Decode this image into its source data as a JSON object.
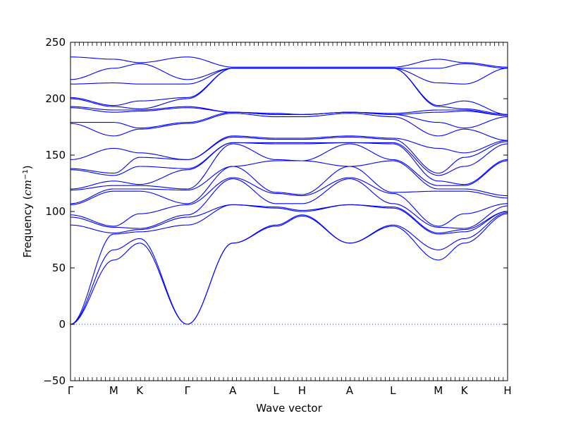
{
  "chart_data": {
    "type": "line",
    "title": "",
    "xlabel": "Wave vector",
    "ylabel": {
      "prefix": "Frequency (",
      "unit": "cm",
      "exponent": "−1",
      "suffix": ")"
    },
    "ylim": [
      -50,
      250
    ],
    "yticks": [
      "250",
      "200",
      "150",
      "100",
      "50",
      "0",
      "−50"
    ],
    "ytick_values": [
      250,
      200,
      150,
      100,
      50,
      0,
      -50
    ],
    "xticks": [
      {
        "label": "Γ",
        "x": 0
      },
      {
        "label": "M",
        "x": 1
      },
      {
        "label": "K",
        "x": 1.6
      },
      {
        "label": "Γ",
        "x": 2.7
      },
      {
        "label": "A",
        "x": 3.75
      },
      {
        "label": "L",
        "x": 4.75
      },
      {
        "label": "H",
        "x": 5.35
      },
      {
        "label": "A",
        "x": 6.45
      },
      {
        "label": "L",
        "x": 7.45
      },
      {
        "label": "M",
        "x": 8.5
      },
      {
        "label": "K",
        "x": 9.1
      },
      {
        "label": "H",
        "x": 10.1
      }
    ],
    "xlim": [
      0,
      10.1
    ],
    "zero_line": {
      "y": 0,
      "style": "dotted"
    },
    "line_color": "#0000ff",
    "segments": [
      {
        "x0": 0,
        "x1": 1,
        "start": [
          0,
          0,
          0,
          88,
          95,
          97,
          106,
          107,
          119,
          120,
          137,
          138,
          146,
          178,
          179,
          192,
          193,
          200,
          201,
          213,
          217,
          237
        ],
        "end": [
          57,
          66,
          80,
          81,
          86,
          87,
          118,
          120,
          123,
          127,
          132,
          134,
          156,
          167,
          179,
          188,
          190,
          193,
          194,
          214,
          227,
          235
        ]
      },
      {
        "x0": 1,
        "x1": 1.6,
        "start": [
          57,
          66,
          80,
          81,
          86,
          87,
          118,
          120,
          123,
          127,
          132,
          134,
          156,
          167,
          179,
          188,
          190,
          193,
          194,
          214,
          227,
          235
        ],
        "end": [
          72,
          76,
          82,
          84,
          85,
          98,
          118,
          120,
          123,
          124,
          140,
          148,
          152,
          173,
          174,
          189,
          190,
          191,
          198,
          213,
          231,
          232
        ]
      },
      {
        "x0": 1.6,
        "x1": 2.7,
        "start": [
          72,
          76,
          82,
          84,
          85,
          98,
          118,
          120,
          123,
          124,
          140,
          148,
          152,
          173,
          174,
          189,
          190,
          191,
          198,
          213,
          231,
          232
        ],
        "end": [
          0,
          0,
          88,
          95,
          97,
          106,
          107,
          119,
          120,
          137,
          138,
          146,
          146,
          178,
          179,
          192,
          193,
          200,
          201,
          213,
          217,
          237
        ]
      },
      {
        "x0": 2.7,
        "x1": 3.75,
        "start": [
          0,
          0,
          88,
          95,
          97,
          106,
          107,
          119,
          120,
          137,
          138,
          146,
          146,
          178,
          179,
          192,
          193,
          200,
          201,
          213,
          217,
          237
        ],
        "end": [
          72,
          72,
          106,
          106,
          129,
          130,
          140,
          140,
          160,
          161,
          161,
          166,
          167,
          187,
          188,
          188,
          188,
          227,
          227,
          227,
          227,
          228
        ]
      },
      {
        "x0": 3.75,
        "x1": 4.75,
        "start": [
          72,
          72,
          106,
          106,
          129,
          130,
          140,
          140,
          160,
          161,
          161,
          166,
          167,
          187,
          188,
          188,
          188,
          227,
          227,
          227,
          227,
          228
        ],
        "end": [
          87,
          88,
          103,
          104,
          107,
          116,
          117,
          145,
          146,
          160,
          161,
          164,
          165,
          184,
          186,
          186,
          187,
          227,
          227,
          227,
          227,
          228
        ]
      },
      {
        "x0": 4.75,
        "x1": 5.35,
        "start": [
          87,
          88,
          103,
          104,
          107,
          116,
          117,
          145,
          146,
          160,
          161,
          164,
          165,
          184,
          186,
          186,
          187,
          227,
          227,
          227,
          227,
          228
        ],
        "end": [
          96,
          97,
          100,
          101,
          107,
          114,
          115,
          145,
          145,
          160,
          161,
          164,
          165,
          184,
          186,
          186,
          186,
          227,
          227,
          227,
          227,
          228
        ]
      },
      {
        "x0": 5.35,
        "x1": 6.45,
        "start": [
          96,
          97,
          100,
          101,
          107,
          114,
          115,
          145,
          145,
          160,
          161,
          164,
          165,
          184,
          186,
          186,
          186,
          227,
          227,
          227,
          227,
          228
        ],
        "end": [
          72,
          72,
          106,
          106,
          129,
          130,
          140,
          140,
          160,
          161,
          161,
          166,
          167,
          187,
          188,
          188,
          188,
          227,
          227,
          227,
          227,
          228
        ]
      },
      {
        "x0": 6.45,
        "x1": 7.45,
        "start": [
          72,
          72,
          106,
          106,
          129,
          130,
          140,
          140,
          160,
          161,
          161,
          166,
          167,
          187,
          188,
          188,
          188,
          227,
          227,
          227,
          227,
          228
        ],
        "end": [
          87,
          88,
          103,
          104,
          107,
          116,
          117,
          145,
          146,
          160,
          161,
          164,
          165,
          184,
          186,
          186,
          187,
          227,
          227,
          227,
          227,
          228
        ]
      },
      {
        "x0": 7.45,
        "x1": 8.5,
        "start": [
          87,
          88,
          103,
          104,
          107,
          116,
          117,
          145,
          146,
          160,
          161,
          164,
          165,
          184,
          186,
          186,
          187,
          227,
          227,
          227,
          227,
          228
        ],
        "end": [
          57,
          66,
          80,
          81,
          86,
          87,
          118,
          120,
          123,
          127,
          132,
          134,
          156,
          167,
          179,
          188,
          190,
          193,
          194,
          214,
          227,
          235
        ]
      },
      {
        "x0": 8.5,
        "x1": 9.1,
        "start": [
          57,
          66,
          80,
          81,
          86,
          87,
          118,
          120,
          123,
          127,
          132,
          134,
          156,
          167,
          179,
          188,
          190,
          193,
          194,
          214,
          227,
          235
        ],
        "end": [
          72,
          76,
          82,
          84,
          85,
          98,
          118,
          120,
          123,
          124,
          140,
          148,
          152,
          173,
          174,
          189,
          190,
          191,
          198,
          213,
          231,
          232
        ]
      },
      {
        "x0": 9.1,
        "x1": 10.1,
        "start": [
          72,
          76,
          82,
          84,
          85,
          98,
          118,
          120,
          123,
          124,
          140,
          148,
          152,
          173,
          174,
          189,
          190,
          191,
          198,
          213,
          231,
          232
        ],
        "end": [
          98,
          99,
          100,
          100,
          105,
          107,
          112,
          114,
          145,
          146,
          160,
          162,
          163,
          163,
          184,
          185,
          185,
          186,
          186,
          227,
          227,
          228
        ]
      }
    ]
  }
}
